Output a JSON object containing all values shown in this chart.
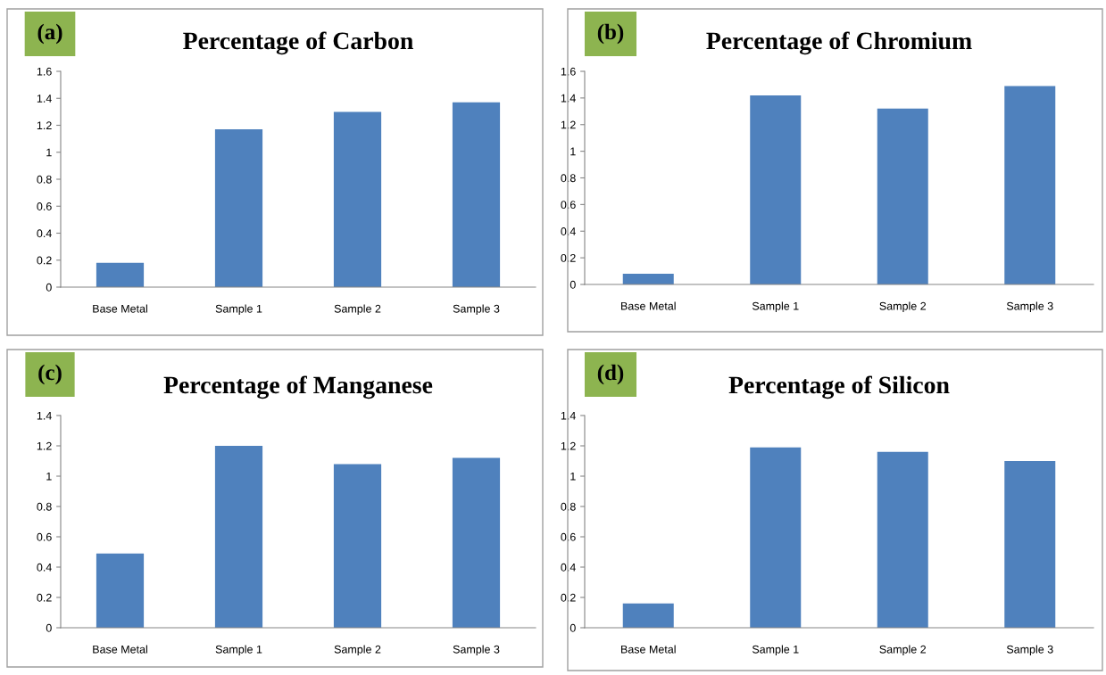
{
  "chart_data": [
    {
      "type": "bar",
      "title": "Percentage of Carbon",
      "annotations": [
        "(a)"
      ],
      "categories": [
        "Base Metal",
        "Sample 1",
        "Sample 2",
        "Sample 3"
      ],
      "values": [
        0.18,
        1.17,
        1.3,
        1.37
      ],
      "color": "#4f81bd",
      "ylim": [
        0,
        1.6
      ],
      "yticks": [
        0,
        0.2,
        0.4,
        0.6,
        0.8,
        1,
        1.2,
        1.4,
        1.6
      ],
      "grid": false
    },
    {
      "type": "bar",
      "title": "Percentage of Chromium",
      "annotations": [
        "(b)"
      ],
      "categories": [
        "Base Metal",
        "Sample 1",
        "Sample 2",
        "Sample 3"
      ],
      "values": [
        0.08,
        1.42,
        1.32,
        1.49
      ],
      "color": "#4f81bd",
      "ylim": [
        0,
        1.6
      ],
      "yticks": [
        0,
        0.2,
        0.4,
        0.6,
        0.8,
        1,
        1.2,
        1.4,
        1.6
      ],
      "grid": false
    },
    {
      "type": "bar",
      "title": "Percentage of Manganese",
      "annotations": [
        "(c)"
      ],
      "categories": [
        "Base Metal",
        "Sample 1",
        "Sample 2",
        "Sample 3"
      ],
      "values": [
        0.49,
        1.2,
        1.08,
        1.12
      ],
      "color": "#4f81bd",
      "ylim": [
        0,
        1.4
      ],
      "yticks": [
        0,
        0.2,
        0.4,
        0.6,
        0.8,
        1,
        1.2,
        1.4
      ],
      "grid": false
    },
    {
      "type": "bar",
      "title": "Percentage of Silicon",
      "annotations": [
        "(d)"
      ],
      "categories": [
        "Base Metal",
        "Sample 1",
        "Sample 2",
        "Sample 3"
      ],
      "values": [
        0.16,
        1.19,
        1.16,
        1.1
      ],
      "color": "#4f81bd",
      "ylim": [
        0,
        1.4
      ],
      "yticks": [
        0,
        0.2,
        0.4,
        0.6,
        0.8,
        1,
        1.2,
        1.4
      ],
      "grid": false
    }
  ]
}
